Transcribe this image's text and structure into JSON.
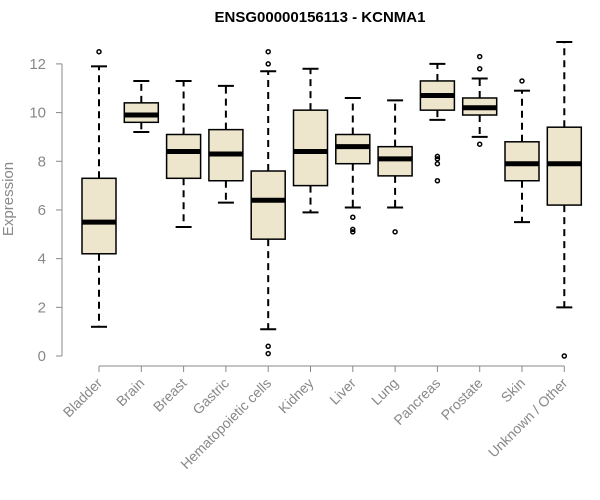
{
  "chart_data": {
    "type": "boxplot",
    "title": "ENSG00000156113 - KCNMA1",
    "xlabel": "",
    "ylabel": "Expression",
    "ylim": [
      0,
      12.9
    ],
    "yticks": [
      0,
      2,
      4,
      6,
      8,
      10,
      12
    ],
    "categories": [
      "Bladder",
      "Brain",
      "Breast",
      "Gastric",
      "Hematopoietic cells",
      "Kidney",
      "Liver",
      "Lung",
      "Pancreas",
      "Prostate",
      "Skin",
      "Unknown / Other"
    ],
    "boxes": [
      {
        "name": "Bladder",
        "whisker_low": 1.2,
        "q1": 4.2,
        "median": 5.5,
        "q3": 7.3,
        "whisker_high": 11.9,
        "outliers": [
          12.5
        ]
      },
      {
        "name": "Brain",
        "whisker_low": 9.2,
        "q1": 9.6,
        "median": 9.9,
        "q3": 10.4,
        "whisker_high": 11.3,
        "outliers": []
      },
      {
        "name": "Breast",
        "whisker_low": 5.3,
        "q1": 7.3,
        "median": 8.4,
        "q3": 9.1,
        "whisker_high": 11.3,
        "outliers": []
      },
      {
        "name": "Gastric",
        "whisker_low": 6.3,
        "q1": 7.2,
        "median": 8.3,
        "q3": 9.3,
        "whisker_high": 11.1,
        "outliers": []
      },
      {
        "name": "Hematopoietic cells",
        "whisker_low": 1.1,
        "q1": 4.8,
        "median": 6.4,
        "q3": 7.6,
        "whisker_high": 11.7,
        "outliers": [
          0.1,
          0.4,
          12.0,
          12.5
        ]
      },
      {
        "name": "Kidney",
        "whisker_low": 5.9,
        "q1": 7.0,
        "median": 8.4,
        "q3": 10.1,
        "whisker_high": 11.8,
        "outliers": []
      },
      {
        "name": "Liver",
        "whisker_low": 6.1,
        "q1": 7.9,
        "median": 8.6,
        "q3": 9.1,
        "whisker_high": 10.6,
        "outliers": [
          5.1,
          5.2,
          5.7
        ]
      },
      {
        "name": "Lung",
        "whisker_low": 6.1,
        "q1": 7.4,
        "median": 8.1,
        "q3": 8.6,
        "whisker_high": 10.5,
        "outliers": [
          5.1
        ]
      },
      {
        "name": "Pancreas",
        "whisker_low": 9.7,
        "q1": 10.1,
        "median": 10.7,
        "q3": 11.3,
        "whisker_high": 12.0,
        "outliers": [
          7.2,
          7.9,
          8.1,
          8.2
        ]
      },
      {
        "name": "Prostate",
        "whisker_low": 9.0,
        "q1": 9.9,
        "median": 10.2,
        "q3": 10.6,
        "whisker_high": 11.4,
        "outliers": [
          8.7,
          11.8,
          12.3
        ]
      },
      {
        "name": "Skin",
        "whisker_low": 5.5,
        "q1": 7.2,
        "median": 7.9,
        "q3": 8.8,
        "whisker_high": 10.9,
        "outliers": [
          11.3
        ]
      },
      {
        "name": "Unknown / Other",
        "whisker_low": 2.0,
        "q1": 6.2,
        "median": 7.9,
        "q3": 9.4,
        "whisker_high": 12.9,
        "outliers": [
          0.0
        ]
      }
    ],
    "box_fill": "#EDE6CC",
    "line_color": "#000000",
    "axis_color": "#888888",
    "grid": false,
    "legend": "none"
  }
}
